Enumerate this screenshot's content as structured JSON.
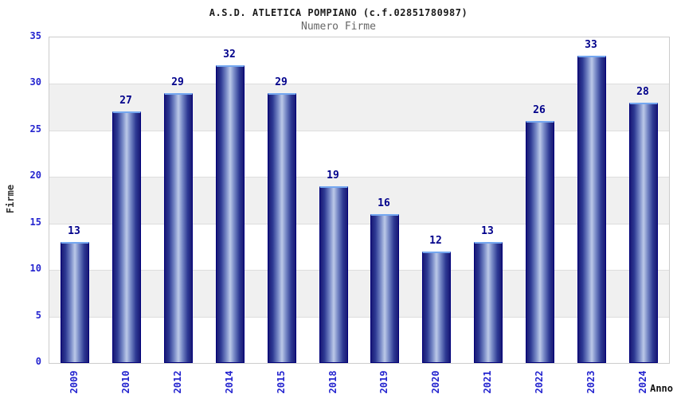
{
  "header": {
    "title": "A.S.D. ATLETICA POMPIANO (c.f.02851780987)",
    "subtitle": "Numero Firme"
  },
  "chart_data": {
    "type": "bar",
    "title": "A.S.D. ATLETICA POMPIANO (c.f.02851780987)",
    "subtitle": "Numero Firme",
    "categories": [
      "2009",
      "2010",
      "2012",
      "2014",
      "2015",
      "2018",
      "2019",
      "2020",
      "2021",
      "2022",
      "2023",
      "2024"
    ],
    "values": [
      13,
      27,
      29,
      32,
      29,
      19,
      16,
      12,
      13,
      26,
      33,
      28
    ],
    "xlabel": "Anno",
    "ylabel": "Firme",
    "ylim": [
      0,
      35
    ],
    "ytick_step": 5,
    "yticks": [
      0,
      5,
      10,
      15,
      20,
      25,
      30,
      35
    ],
    "grid": true,
    "legend": false,
    "band_fill_alternate": true,
    "colors": {
      "bar_edge": "#00007a",
      "bar_dark": "#191975",
      "bar_light": "#bcc9e8",
      "bar_top_cap": "#74a7f0",
      "tick_label": "#2424cf",
      "value_label": "#00008b",
      "band_gray": "#f0f0f0",
      "plot_border": "#cccccc",
      "gridline": "#dddddd",
      "title_color": "#1a1a1a",
      "subtitle_color": "#666666"
    }
  }
}
